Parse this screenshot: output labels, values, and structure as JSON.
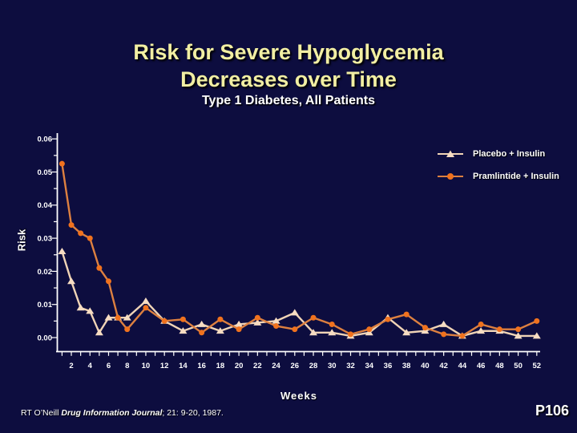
{
  "slide": {
    "title_line1": "Risk for Severe Hypoglycemia",
    "title_line2": "Decreases over Time",
    "subtitle": "Type 1 Diabetes, All Patients",
    "footer_prefix": "RT O’Neill ",
    "footer_italic": "Drug Information Journal",
    "footer_suffix": "; 21: 9-20, 1987.",
    "page_number": "P106"
  },
  "colors": {
    "background": "#0D0D3F",
    "title_text": "#F2EFA3",
    "axis_text": "#FFFFFF"
  },
  "chart_data": {
    "type": "line",
    "title": "Risk for Severe Hypoglycemia Decreases over Time",
    "subtitle": "Type 1 Diabetes, All Patients",
    "xlabel": "Weeks",
    "ylabel": "Risk",
    "ylim": [
      0,
      0.06
    ],
    "grid": false,
    "legend_position": "top-right",
    "ytick_labels": [
      "0.00",
      "0.01",
      "0.02",
      "0.03",
      "0.04",
      "0.05",
      "0.06"
    ],
    "xtick_labels": [
      2,
      4,
      6,
      8,
      10,
      12,
      14,
      16,
      18,
      20,
      22,
      24,
      26,
      28,
      30,
      32,
      34,
      36,
      38,
      40,
      42,
      44,
      46,
      48,
      50,
      52
    ],
    "x": [
      1,
      2,
      3,
      4,
      5,
      6,
      7,
      8,
      10,
      12,
      14,
      16,
      18,
      20,
      22,
      24,
      26,
      28,
      30,
      32,
      34,
      36,
      38,
      40,
      42,
      44,
      46,
      48,
      50,
      52
    ],
    "series": [
      {
        "name": "Placebo + Insulin",
        "marker": "triangle",
        "line_color": "#F0D4B6",
        "marker_color": "#F6DCC2",
        "values": [
          0.026,
          0.017,
          0.009,
          0.008,
          0.0015,
          0.006,
          0.006,
          0.006,
          0.011,
          0.005,
          0.002,
          0.004,
          0.002,
          0.004,
          0.0045,
          0.005,
          0.0075,
          0.0015,
          0.0015,
          0.0005,
          0.0015,
          0.006,
          0.0015,
          0.002,
          0.004,
          0.0005,
          0.002,
          0.002,
          0.0005,
          0.0005
        ]
      },
      {
        "name": "Pramlintide + Insulin",
        "marker": "circle",
        "line_color": "#DD8040",
        "marker_color": "#F0721E",
        "values": [
          0.0525,
          0.034,
          0.0315,
          0.03,
          0.021,
          0.017,
          0.006,
          0.0025,
          0.009,
          0.005,
          0.0055,
          0.0015,
          0.0055,
          0.0025,
          0.006,
          0.0035,
          0.0025,
          0.006,
          0.004,
          0.001,
          0.0025,
          0.0055,
          0.007,
          0.003,
          0.001,
          0.0005,
          0.004,
          0.0025,
          0.0025,
          0.005
        ]
      }
    ]
  }
}
